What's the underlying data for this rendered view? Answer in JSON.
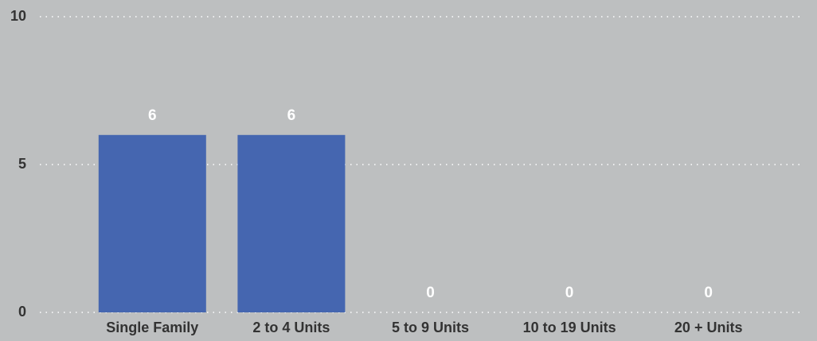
{
  "chart_data": {
    "type": "bar",
    "categories": [
      "Single Family",
      "2 to 4 Units",
      "5 to 9 Units",
      "10 to 19 Units",
      "20 + Units"
    ],
    "values": [
      6,
      6,
      0,
      0,
      0
    ],
    "color": "#4566b0",
    "ylim": [
      0,
      10
    ],
    "yticks": [
      0,
      5,
      10
    ],
    "grid": true
  }
}
